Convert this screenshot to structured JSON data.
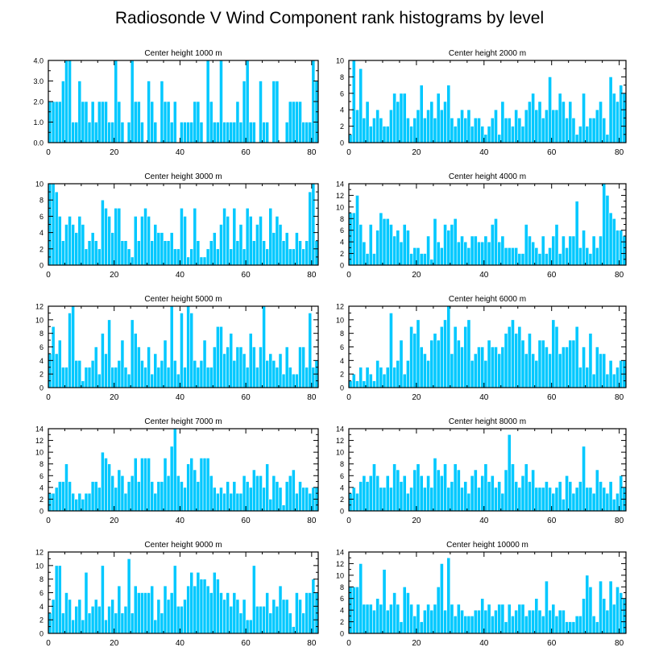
{
  "figure": {
    "title": "Radiosonde V Wind Component rank histograms by level"
  },
  "colors": {
    "bar": "#00c8ff",
    "bar_edge": "#ffffff",
    "axis": "#000000"
  },
  "chart_data": [
    {
      "type": "bar",
      "title": "Center height 1000 m",
      "xlabel": "",
      "ylabel": "",
      "xlim": [
        0,
        82
      ],
      "ylim": [
        0,
        4
      ],
      "xticks": [
        0,
        20,
        40,
        60,
        80
      ],
      "yticks": [
        0,
        1,
        2,
        3,
        4
      ],
      "ytick_labels": [
        "0.0",
        "1.0",
        "2.0",
        "3.0",
        "4.0"
      ],
      "x_start": 0,
      "values": [
        2,
        2,
        2,
        2,
        3,
        4,
        4,
        1,
        1,
        3,
        2,
        2,
        1,
        2,
        1,
        2,
        2,
        2,
        1,
        1,
        4,
        2,
        1,
        0,
        1,
        4,
        2,
        2,
        1,
        0,
        3,
        2,
        1,
        0,
        3,
        2,
        2,
        1,
        2,
        0,
        1,
        1,
        1,
        1,
        2,
        2,
        1,
        0,
        4,
        2,
        1,
        1,
        4,
        1,
        1,
        1,
        1,
        2,
        1,
        3,
        4,
        1,
        1,
        0,
        3,
        1,
        1,
        0,
        3,
        3,
        0,
        0,
        1,
        2,
        2,
        2,
        2,
        1,
        1,
        1,
        4,
        3
      ]
    },
    {
      "type": "bar",
      "title": "Center height 2000 m",
      "xlabel": "",
      "ylabel": "",
      "xlim": [
        0,
        82
      ],
      "ylim": [
        0,
        10
      ],
      "xticks": [
        0,
        20,
        40,
        60,
        80
      ],
      "yticks": [
        0,
        2,
        4,
        6,
        8,
        10
      ],
      "x_start": 0,
      "values": [
        1,
        10,
        4,
        9,
        3,
        5,
        2,
        3,
        4,
        3,
        2,
        2,
        4,
        6,
        5,
        6,
        6,
        3,
        2,
        3,
        4,
        7,
        3,
        4,
        5,
        3,
        6,
        4,
        5,
        7,
        3,
        2,
        3,
        4,
        3,
        4,
        2,
        3,
        3,
        2,
        1,
        2,
        3,
        4,
        1,
        5,
        3,
        3,
        2,
        4,
        3,
        2,
        4,
        5,
        6,
        4,
        5,
        3,
        4,
        8,
        4,
        4,
        6,
        5,
        3,
        5,
        3,
        1,
        2,
        6,
        2,
        3,
        3,
        4,
        5,
        3,
        1,
        8,
        6,
        5,
        7,
        6
      ]
    },
    {
      "type": "bar",
      "title": "Center height 3000 m",
      "xlabel": "",
      "ylabel": "",
      "xlim": [
        0,
        82
      ],
      "ylim": [
        0,
        10
      ],
      "xticks": [
        0,
        20,
        40,
        60,
        80
      ],
      "yticks": [
        0,
        2,
        4,
        6,
        8,
        10
      ],
      "x_start": 0,
      "values": [
        10,
        10,
        9,
        6,
        3,
        5,
        6,
        5,
        4,
        6,
        5,
        2,
        3,
        4,
        3,
        2,
        8,
        7,
        6,
        4,
        7,
        7,
        3,
        3,
        2,
        1,
        6,
        3,
        6,
        7,
        6,
        3,
        5,
        4,
        4,
        3,
        3,
        4,
        2,
        2,
        7,
        6,
        1,
        2,
        7,
        3,
        1,
        1,
        2,
        3,
        4,
        2,
        5,
        7,
        6,
        2,
        7,
        3,
        5,
        2,
        7,
        6,
        3,
        5,
        6,
        3,
        2,
        7,
        4,
        6,
        5,
        3,
        4,
        2,
        2,
        4,
        3,
        2,
        3,
        9,
        10,
        3
      ]
    },
    {
      "type": "bar",
      "title": "Center height 4000 m",
      "xlabel": "",
      "ylabel": "",
      "xlim": [
        0,
        82
      ],
      "ylim": [
        0,
        14
      ],
      "xticks": [
        0,
        20,
        40,
        60,
        80
      ],
      "yticks": [
        0,
        2,
        4,
        6,
        8,
        10,
        12,
        14
      ],
      "x_start": 0,
      "values": [
        9,
        9,
        12,
        7,
        4,
        2,
        7,
        2,
        6,
        9,
        8,
        8,
        7,
        5,
        6,
        4,
        7,
        6,
        2,
        3,
        3,
        2,
        2,
        5,
        1,
        8,
        4,
        3,
        7,
        6,
        7,
        8,
        4,
        5,
        4,
        3,
        5,
        5,
        4,
        4,
        5,
        4,
        7,
        8,
        4,
        5,
        3,
        3,
        3,
        3,
        2,
        2,
        7,
        5,
        4,
        3,
        2,
        5,
        2,
        3,
        5,
        7,
        2,
        5,
        3,
        5,
        5,
        11,
        3,
        6,
        3,
        2,
        5,
        3,
        5,
        14,
        12,
        9,
        8,
        6,
        6,
        5
      ]
    },
    {
      "type": "bar",
      "title": "Center height 5000 m",
      "xlabel": "",
      "ylabel": "",
      "xlim": [
        0,
        82
      ],
      "ylim": [
        0,
        12
      ],
      "xticks": [
        0,
        20,
        40,
        60,
        80
      ],
      "yticks": [
        0,
        2,
        4,
        6,
        8,
        10,
        12
      ],
      "x_start": 0,
      "values": [
        5,
        9,
        5,
        7,
        3,
        3,
        11,
        12,
        4,
        4,
        1,
        3,
        3,
        4,
        6,
        2,
        8,
        5,
        10,
        3,
        3,
        4,
        7,
        3,
        2,
        10,
        8,
        6,
        4,
        3,
        6,
        2,
        5,
        3,
        4,
        7,
        3,
        12,
        4,
        2,
        11,
        3,
        12,
        11,
        4,
        3,
        4,
        7,
        3,
        3,
        6,
        9,
        9,
        5,
        6,
        8,
        4,
        6,
        6,
        5,
        3,
        8,
        6,
        3,
        6,
        12,
        4,
        5,
        4,
        3,
        5,
        2,
        6,
        3,
        2,
        2,
        6,
        6,
        3,
        11,
        3,
        4
      ]
    },
    {
      "type": "bar",
      "title": "Center height 6000 m",
      "xlabel": "",
      "ylabel": "",
      "xlim": [
        0,
        82
      ],
      "ylim": [
        0,
        12
      ],
      "xticks": [
        0,
        20,
        40,
        60,
        80
      ],
      "yticks": [
        0,
        2,
        4,
        6,
        8,
        10,
        12
      ],
      "x_start": 0,
      "values": [
        1,
        2,
        1,
        3,
        1,
        3,
        2,
        1,
        4,
        3,
        2,
        3,
        11,
        3,
        4,
        7,
        2,
        4,
        9,
        8,
        10,
        6,
        5,
        4,
        7,
        8,
        7,
        9,
        10,
        12,
        5,
        9,
        7,
        6,
        9,
        10,
        4,
        5,
        6,
        6,
        4,
        7,
        6,
        6,
        5,
        6,
        8,
        9,
        10,
        8,
        9,
        7,
        5,
        8,
        5,
        4,
        7,
        7,
        6,
        5,
        10,
        9,
        5,
        6,
        6,
        7,
        7,
        9,
        3,
        6,
        3,
        8,
        2,
        6,
        5,
        5,
        2,
        4,
        2,
        3,
        4,
        4
      ]
    },
    {
      "type": "bar",
      "title": "Center height 7000 m",
      "xlabel": "",
      "ylabel": "",
      "xlim": [
        0,
        82
      ],
      "ylim": [
        0,
        14
      ],
      "xticks": [
        0,
        20,
        40,
        60,
        80
      ],
      "yticks": [
        0,
        2,
        4,
        6,
        8,
        10,
        12,
        14
      ],
      "x_start": 0,
      "values": [
        3,
        3,
        4,
        5,
        5,
        8,
        5,
        3,
        2,
        3,
        2,
        3,
        3,
        5,
        5,
        4,
        10,
        9,
        8,
        6,
        4,
        7,
        6,
        3,
        5,
        6,
        9,
        5,
        9,
        9,
        9,
        5,
        3,
        5,
        5,
        9,
        6,
        11,
        14,
        6,
        5,
        4,
        8,
        9,
        7,
        5,
        9,
        9,
        9,
        6,
        4,
        3,
        4,
        3,
        5,
        3,
        5,
        3,
        3,
        6,
        5,
        4,
        7,
        6,
        6,
        4,
        8,
        2,
        6,
        5,
        4,
        1,
        5,
        6,
        7,
        3,
        5,
        4,
        4,
        3,
        4,
        4
      ]
    },
    {
      "type": "bar",
      "title": "Center height 8000 m",
      "xlabel": "",
      "ylabel": "",
      "xlim": [
        0,
        82
      ],
      "ylim": [
        0,
        14
      ],
      "xticks": [
        0,
        20,
        40,
        60,
        80
      ],
      "yticks": [
        0,
        2,
        4,
        6,
        8,
        10,
        12,
        14
      ],
      "x_start": 0,
      "values": [
        3,
        4,
        3,
        5,
        6,
        5,
        6,
        8,
        6,
        4,
        4,
        6,
        4,
        8,
        7,
        5,
        6,
        3,
        4,
        7,
        8,
        6,
        4,
        6,
        4,
        9,
        7,
        6,
        8,
        4,
        5,
        8,
        7,
        4,
        5,
        3,
        6,
        7,
        4,
        6,
        8,
        5,
        6,
        4,
        5,
        3,
        7,
        13,
        8,
        5,
        4,
        6,
        8,
        5,
        7,
        4,
        4,
        4,
        5,
        4,
        3,
        4,
        5,
        2,
        6,
        5,
        3,
        4,
        5,
        11,
        4,
        4,
        3,
        7,
        5,
        4,
        3,
        5,
        2,
        3,
        6,
        4
      ]
    },
    {
      "type": "bar",
      "title": "Center height 9000 m",
      "xlabel": "",
      "ylabel": "",
      "xlim": [
        0,
        82
      ],
      "ylim": [
        0,
        12
      ],
      "xticks": [
        0,
        20,
        40,
        60,
        80
      ],
      "yticks": [
        0,
        2,
        4,
        6,
        8,
        10,
        12
      ],
      "x_start": 0,
      "values": [
        3,
        5,
        10,
        10,
        3,
        6,
        5,
        2,
        4,
        5,
        2,
        9,
        3,
        4,
        5,
        4,
        10,
        2,
        4,
        5,
        3,
        7,
        3,
        4,
        11,
        3,
        7,
        6,
        6,
        6,
        6,
        7,
        2,
        5,
        3,
        7,
        5,
        6,
        10,
        4,
        4,
        5,
        7,
        9,
        7,
        9,
        8,
        8,
        7,
        6,
        9,
        8,
        6,
        5,
        6,
        4,
        6,
        5,
        3,
        5,
        2,
        2,
        10,
        4,
        4,
        4,
        6,
        3,
        5,
        4,
        7,
        5,
        5,
        3,
        1,
        6,
        5,
        3,
        6,
        6,
        8,
        6
      ]
    },
    {
      "type": "bar",
      "title": "Center height 10000 m",
      "xlabel": "",
      "ylabel": "",
      "xlim": [
        0,
        82
      ],
      "ylim": [
        0,
        14
      ],
      "xticks": [
        0,
        20,
        40,
        60,
        80
      ],
      "yticks": [
        0,
        2,
        4,
        6,
        8,
        10,
        12,
        14
      ],
      "x_start": 0,
      "values": [
        8,
        8,
        8,
        12,
        5,
        5,
        5,
        4,
        6,
        5,
        11,
        4,
        5,
        7,
        5,
        2,
        8,
        7,
        5,
        3,
        5,
        2,
        4,
        5,
        4,
        5,
        8,
        12,
        4,
        13,
        5,
        3,
        5,
        4,
        3,
        3,
        3,
        4,
        4,
        6,
        4,
        5,
        3,
        4,
        5,
        5,
        2,
        5,
        3,
        4,
        5,
        5,
        3,
        4,
        4,
        6,
        4,
        3,
        9,
        4,
        5,
        3,
        4,
        4,
        2,
        2,
        2,
        3,
        3,
        6,
        10,
        8,
        3,
        2,
        9,
        6,
        4,
        9,
        5,
        8,
        7,
        6
      ]
    }
  ]
}
